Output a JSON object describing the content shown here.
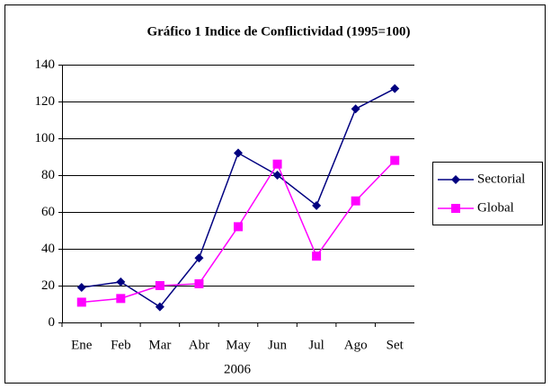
{
  "chart_data": {
    "type": "line",
    "title": "Gráfico 1 Indice de Conflictividad (1995=100)",
    "x_label": "2006",
    "categories": [
      "Ene",
      "Feb",
      "Mar",
      "Abr",
      "May",
      "Jun",
      "Jul",
      "Ago",
      "Set"
    ],
    "series": [
      {
        "name": "Sectorial",
        "color": "#000080",
        "marker": "diamond",
        "values": [
          19,
          22,
          8.5,
          35,
          92,
          80,
          63.5,
          116,
          127
        ]
      },
      {
        "name": "Global",
        "color": "#ff00ff",
        "marker": "square",
        "values": [
          11,
          13,
          20,
          21,
          52,
          86,
          36,
          66,
          88
        ]
      }
    ],
    "ylim": [
      0,
      140
    ],
    "yticks": [
      0,
      20,
      40,
      60,
      80,
      100,
      120,
      140
    ],
    "grid": true,
    "legend": "right"
  }
}
